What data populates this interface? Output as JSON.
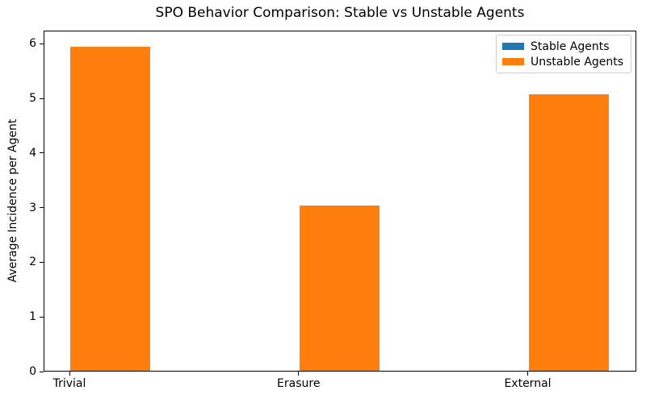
{
  "chart_data": {
    "type": "bar",
    "title": "SPO Behavior Comparison: Stable vs Unstable Agents",
    "xlabel": "",
    "ylabel": "Average Incidence per Agent",
    "categories": [
      "Trivial",
      "Erasure",
      "External"
    ],
    "series": [
      {
        "name": "Stable Agents",
        "color": "#1f77b4",
        "values": [
          0,
          0,
          0
        ]
      },
      {
        "name": "Unstable Agents",
        "color": "#ff7f0e",
        "values": [
          5.93,
          3.02,
          5.06
        ]
      }
    ],
    "ylim": [
      0,
      6.24
    ],
    "yticks": [
      0,
      1,
      2,
      3,
      4,
      5,
      6
    ],
    "grid": false,
    "legend_position": "upper right",
    "bar_width_ratio": 0.35,
    "colors": {
      "spine": "#000000",
      "text": "#000000",
      "legend_border": "#cccccc",
      "background": "#ffffff"
    }
  }
}
